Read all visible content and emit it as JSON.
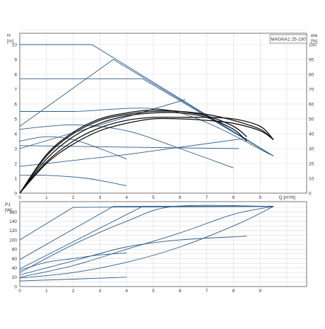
{
  "title": "MAGNA1 25-100",
  "colors": {
    "curve": "#2b5c8a",
    "efficiency": "#111111",
    "grid": "#d9d9d9",
    "axis": "#555555"
  },
  "chart_data": [
    {
      "type": "line",
      "panel": "head",
      "title": "MAGNA1 25-100",
      "ylabel": [
        "H",
        "[m]"
      ],
      "y2label": [
        "eta",
        "[%]"
      ],
      "xlabel": "Q [m³/h]",
      "xlim": [
        0,
        10
      ],
      "ylim": [
        0,
        11
      ],
      "y2lim": [
        0,
        110
      ],
      "x_ticks": [
        "0",
        "1",
        "2",
        "3",
        "4",
        "5",
        "6",
        "7",
        "8",
        "9"
      ],
      "y_ticks": [
        "0",
        "1",
        "2",
        "3",
        "4",
        "5",
        "6",
        "7",
        "8",
        "9",
        "10"
      ],
      "y2_ticks": [
        "0",
        "10",
        "20",
        "30",
        "40",
        "50",
        "60",
        "70",
        "80",
        "90",
        "100"
      ],
      "grid": true,
      "series": [
        {
          "kind": "pump",
          "x": [
            0,
            2.7,
            9.5
          ],
          "y": [
            10,
            10,
            2.5
          ]
        },
        {
          "kind": "pump",
          "x": [
            0,
            3.5,
            9.5
          ],
          "y": [
            4.5,
            9,
            2.5
          ]
        },
        {
          "kind": "pump",
          "x": [
            0,
            4.6,
            9.5
          ],
          "y": [
            7.7,
            7.7,
            2.5
          ]
        },
        {
          "kind": "pump",
          "x": [
            0,
            2.0,
            5.8,
            9.5
          ],
          "y": [
            5.5,
            5.5,
            5.5,
            2.5
          ]
        },
        {
          "kind": "pump",
          "x": [
            0,
            2.0,
            4.0,
            6.0,
            8.0
          ],
          "y": [
            4.3,
            4.6,
            4.2,
            3.0,
            1.7
          ]
        },
        {
          "kind": "pump",
          "x": [
            0,
            4.0,
            8.2
          ],
          "y": [
            3.2,
            3.1,
            3.0
          ]
        },
        {
          "kind": "pump",
          "x": [
            0,
            4.0,
            8.5
          ],
          "y": [
            1.8,
            2.6,
            3.7
          ]
        },
        {
          "kind": "pump",
          "x": [
            0,
            1.0,
            2.5,
            4.0
          ],
          "y": [
            1.2,
            1.2,
            1.0,
            0.5
          ]
        },
        {
          "kind": "pump",
          "x": [
            0,
            1.0,
            2.0,
            3.0,
            4.0
          ],
          "y": [
            3.5,
            3.8,
            3.6,
            3.0,
            2.3
          ]
        },
        {
          "kind": "pump",
          "x": [
            0,
            6.2
          ],
          "y": [
            3.0,
            6.3
          ]
        },
        {
          "kind": "efficiency",
          "x": [
            0,
            1,
            2,
            3,
            4,
            5,
            6,
            7,
            8,
            9,
            9.5
          ],
          "y2": [
            0,
            20,
            33,
            42,
            47,
            50,
            50,
            49,
            47,
            42,
            36
          ]
        },
        {
          "kind": "efficiency",
          "x": [
            0,
            1,
            2,
            3,
            4,
            5,
            6,
            7,
            8,
            8.5
          ],
          "y2": [
            0,
            23,
            38,
            47,
            52,
            54,
            54,
            51,
            43,
            35
          ]
        },
        {
          "kind": "efficiency",
          "x": [
            0,
            1,
            2,
            3,
            4,
            5,
            6,
            7,
            8,
            9,
            9.5
          ],
          "y2": [
            0,
            25,
            40,
            49,
            53,
            55,
            55,
            53,
            49,
            43,
            36
          ]
        },
        {
          "kind": "efficiency",
          "x": [
            0,
            1,
            2,
            3,
            4,
            5,
            6,
            7,
            8,
            9,
            9.5
          ],
          "y2": [
            0,
            21,
            35,
            44,
            49,
            51,
            51,
            51,
            50,
            45,
            36
          ]
        },
        {
          "kind": "efficiency",
          "x": [
            0,
            1,
            2,
            3,
            4,
            5,
            6,
            7,
            8,
            8.5
          ],
          "y2": [
            0,
            26,
            41,
            50,
            54,
            56,
            55,
            52,
            45,
            38
          ]
        }
      ]
    },
    {
      "type": "line",
      "panel": "power",
      "ylabel": [
        "P1",
        "[W]"
      ],
      "xlim": [
        0,
        10
      ],
      "ylim": [
        0,
        180
      ],
      "x_ticks": [
        "0",
        "1",
        "2",
        "3",
        "4",
        "5",
        "6",
        "7",
        "8",
        "9"
      ],
      "y_ticks": [
        "0",
        "20",
        "40",
        "60",
        "80",
        "100",
        "120",
        "140",
        "160"
      ],
      "grid": true,
      "series": [
        {
          "x": [
            0,
            2.0,
            9.5
          ],
          "y": [
            100,
            170,
            172
          ]
        },
        {
          "x": [
            0,
            3.5,
            9.5
          ],
          "y": [
            58,
            172,
            172
          ]
        },
        {
          "x": [
            0,
            4.6,
            9.5
          ],
          "y": [
            38,
            172,
            172
          ]
        },
        {
          "x": [
            0,
            2.0,
            4.0,
            5.8,
            9.5
          ],
          "y": [
            30,
            90,
            140,
            172,
            172
          ]
        },
        {
          "x": [
            0,
            2.0,
            4.0,
            6.0,
            8.0,
            9.5
          ],
          "y": [
            20,
            45,
            80,
            115,
            155,
            172
          ]
        },
        {
          "x": [
            0,
            2.0,
            4.0,
            6.0,
            8.2,
            9.5
          ],
          "y": [
            18,
            30,
            52,
            85,
            135,
            172
          ]
        },
        {
          "x": [
            0,
            2.0,
            4.0,
            6.0,
            8.5
          ],
          "y": [
            25,
            55,
            85,
            100,
            108
          ]
        },
        {
          "x": [
            0,
            2.0,
            4.0
          ],
          "y": [
            12,
            16,
            20
          ]
        },
        {
          "x": [
            0,
            1.0,
            2.0,
            3.0,
            4.0
          ],
          "y": [
            35,
            52,
            60,
            68,
            72
          ]
        }
      ]
    }
  ]
}
